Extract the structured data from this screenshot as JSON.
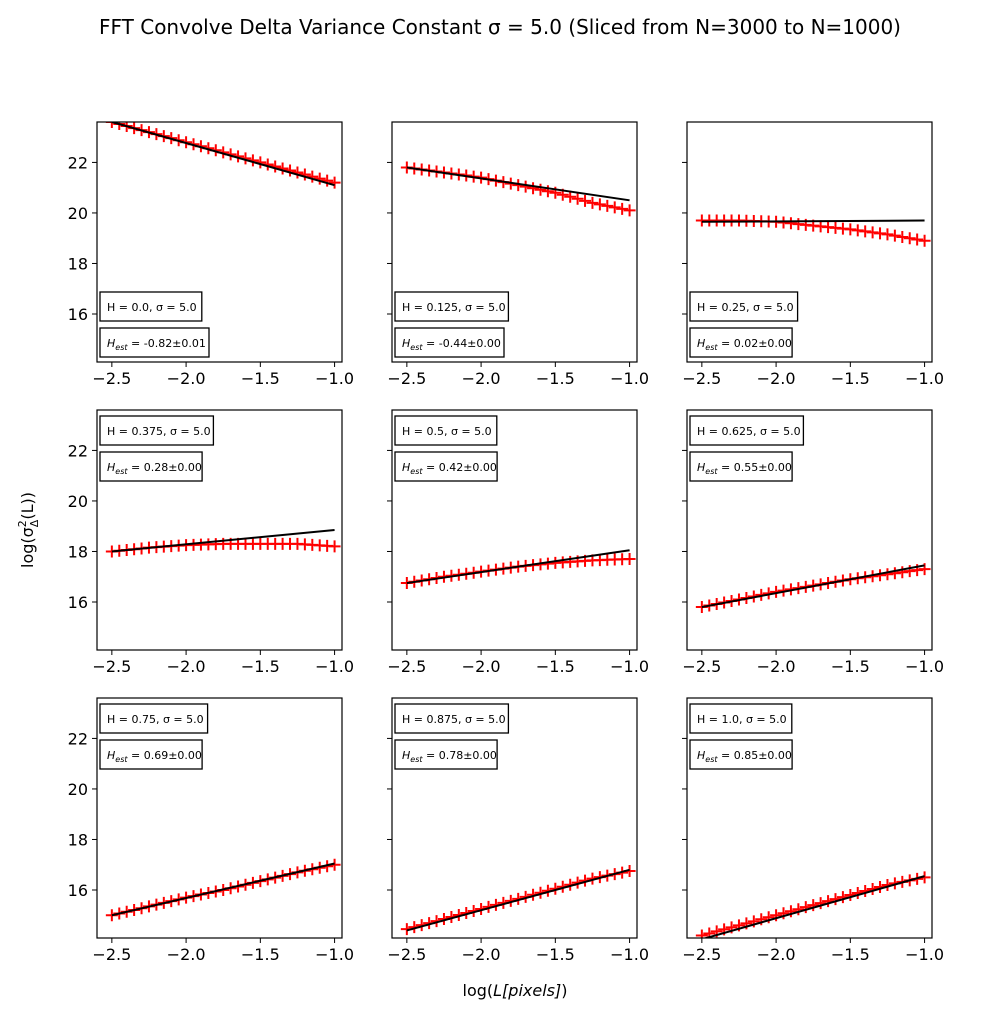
{
  "figure": {
    "title": "FFT Convolve Delta Variance Constant σ = 5.0 (Sliced from N=3000 to N=1000)",
    "xlabel": "log(L[pixels])",
    "ylabel_parts": {
      "base": "log(σ",
      "sup": "2",
      "sub": "Δ",
      "tail": "(L))"
    },
    "xlabel_parts": {
      "pre": "log(",
      "italic": "L[pixels]",
      "post": ")"
    }
  },
  "style": {
    "data_color": "#ff0000",
    "fit_color": "#000000",
    "axis_color": "#000000",
    "marker": "plus"
  },
  "chart_data": [
    {
      "type": "scatter",
      "label_H": "H = 0.0, σ = 5.0",
      "label_est": "-0.82±0.01",
      "x_start": -2.5,
      "x_end": -1.0,
      "data_y": [
        23.6,
        23.2,
        22.8,
        22.4,
        22.0,
        21.6,
        21.2
      ],
      "fit_y": [
        23.6,
        21.1
      ],
      "xticks": [
        "−2.5",
        "−2.0",
        "−1.5",
        "−1.0"
      ],
      "yticks": [
        "16",
        "18",
        "20",
        "22"
      ],
      "xlim": [
        -2.6,
        -0.95
      ],
      "ylim": [
        14.1,
        23.6
      ]
    },
    {
      "type": "scatter",
      "label_H": "H = 0.125, σ = 5.0",
      "label_est": "-0.44±0.00",
      "x_start": -2.5,
      "x_end": -1.0,
      "data_y": [
        21.8,
        21.6,
        21.4,
        21.1,
        20.8,
        20.4,
        20.1
      ],
      "fit_y": [
        21.8,
        20.5
      ],
      "xticks": [
        "−2.5",
        "−2.0",
        "−1.5",
        "−1.0"
      ],
      "yticks": [],
      "xlim": [
        -2.6,
        -0.95
      ],
      "ylim": [
        14.1,
        23.6
      ]
    },
    {
      "type": "scatter",
      "label_H": "H = 0.25, σ = 5.0",
      "label_est": "0.02±0.00",
      "x_start": -2.5,
      "x_end": -1.0,
      "data_y": [
        19.7,
        19.7,
        19.65,
        19.5,
        19.35,
        19.15,
        18.9
      ],
      "fit_y": [
        19.65,
        19.7
      ],
      "xticks": [
        "−2.5",
        "−2.0",
        "−1.5",
        "−1.0"
      ],
      "yticks": [],
      "xlim": [
        -2.6,
        -0.95
      ],
      "ylim": [
        14.1,
        23.6
      ]
    },
    {
      "type": "scatter",
      "label_H": "H = 0.375, σ = 5.0",
      "label_est": "0.28±0.00",
      "x_start": -2.5,
      "x_end": -1.0,
      "data_y": [
        18.0,
        18.15,
        18.25,
        18.3,
        18.3,
        18.3,
        18.2
      ],
      "fit_y": [
        18.0,
        18.85
      ],
      "xticks": [
        "−2.5",
        "−2.0",
        "−1.5",
        "−1.0"
      ],
      "yticks": [
        "16",
        "18",
        "20",
        "22"
      ],
      "xlim": [
        -2.6,
        -0.95
      ],
      "ylim": [
        14.1,
        23.6
      ]
    },
    {
      "type": "scatter",
      "label_H": "H = 0.5, σ = 5.0",
      "label_est": "0.42±0.00",
      "x_start": -2.5,
      "x_end": -1.0,
      "data_y": [
        16.75,
        17.0,
        17.2,
        17.4,
        17.55,
        17.65,
        17.7
      ],
      "fit_y": [
        16.75,
        18.05
      ],
      "xticks": [
        "−2.5",
        "−2.0",
        "−1.5",
        "−1.0"
      ],
      "yticks": [],
      "xlim": [
        -2.6,
        -0.95
      ],
      "ylim": [
        14.1,
        23.6
      ]
    },
    {
      "type": "scatter",
      "label_H": "H = 0.625, σ = 5.0",
      "label_est": "0.55±0.00",
      "x_start": -2.5,
      "x_end": -1.0,
      "data_y": [
        15.8,
        16.1,
        16.4,
        16.65,
        16.9,
        17.1,
        17.3
      ],
      "fit_y": [
        15.8,
        17.45
      ],
      "xticks": [
        "−2.5",
        "−2.0",
        "−1.5",
        "−1.0"
      ],
      "yticks": [],
      "xlim": [
        -2.6,
        -0.95
      ],
      "ylim": [
        14.1,
        23.6
      ]
    },
    {
      "type": "scatter",
      "label_H": "H = 0.75, σ = 5.0",
      "label_est": "0.69±0.00",
      "x_start": -2.5,
      "x_end": -1.0,
      "data_y": [
        15.0,
        15.35,
        15.7,
        16.0,
        16.35,
        16.7,
        17.0
      ],
      "fit_y": [
        15.0,
        17.05
      ],
      "xticks": [
        "−2.5",
        "−2.0",
        "−1.5",
        "−1.0"
      ],
      "yticks": [
        "16",
        "18",
        "20",
        "22"
      ],
      "xlim": [
        -2.6,
        -0.95
      ],
      "ylim": [
        14.1,
        23.6
      ]
    },
    {
      "type": "scatter",
      "label_H": "H = 0.875, σ = 5.0",
      "label_est": "0.78±0.00",
      "x_start": -2.5,
      "x_end": -1.0,
      "data_y": [
        14.45,
        14.85,
        15.25,
        15.65,
        16.05,
        16.45,
        16.75
      ],
      "fit_y": [
        14.4,
        16.8
      ],
      "xticks": [
        "−2.5",
        "−2.0",
        "−1.5",
        "−1.0"
      ],
      "yticks": [],
      "xlim": [
        -2.6,
        -0.95
      ],
      "ylim": [
        14.1,
        23.6
      ]
    },
    {
      "type": "scatter",
      "label_H": "H = 1.0, σ = 5.0",
      "label_est": "0.85±0.00",
      "x_start": -2.5,
      "x_end": -1.0,
      "data_y": [
        14.2,
        14.6,
        15.0,
        15.4,
        15.8,
        16.2,
        16.5
      ],
      "fit_y": [
        14.05,
        16.55
      ],
      "xticks": [
        "−2.5",
        "−2.0",
        "−1.5",
        "−1.0"
      ],
      "yticks": [],
      "xlim": [
        -2.6,
        -0.95
      ],
      "ylim": [
        14.1,
        23.6
      ]
    }
  ]
}
